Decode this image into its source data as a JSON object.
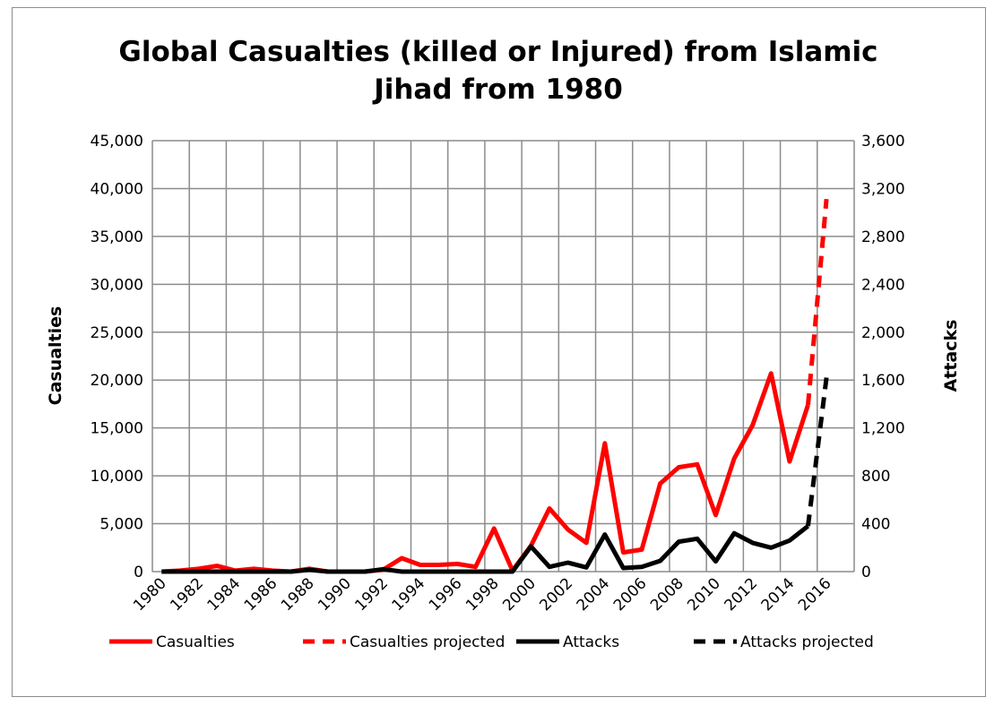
{
  "chart_data": {
    "type": "line",
    "title_lines": [
      "Global Casualties (killed or Injured) from Islamic",
      "Jihad from 1980"
    ],
    "xlabel": "",
    "ylabel": "Casualties",
    "y2label": "Attacks",
    "ylim": [
      0,
      45000
    ],
    "y2lim": [
      0,
      3600
    ],
    "yticks": [
      "0",
      "5,000",
      "10,000",
      "15,000",
      "20,000",
      "25,000",
      "30,000",
      "35,000",
      "40,000",
      "45,000"
    ],
    "y2ticks": [
      "0",
      "400",
      "800",
      "1,200",
      "1,600",
      "2,000",
      "2,400",
      "2,800",
      "3,200",
      "3,600"
    ],
    "x": [
      1980,
      1981,
      1982,
      1983,
      1984,
      1985,
      1986,
      1987,
      1988,
      1989,
      1990,
      1991,
      1992,
      1993,
      1994,
      1995,
      1996,
      1997,
      1998,
      1999,
      2000,
      2001,
      2002,
      2003,
      2004,
      2005,
      2006,
      2007,
      2008,
      2009,
      2010,
      2011,
      2012,
      2013,
      2014,
      2015,
      2016
    ],
    "xticks": [
      "1980",
      "1982",
      "1984",
      "1986",
      "1988",
      "1990",
      "1992",
      "1994",
      "1996",
      "1998",
      "2000",
      "2002",
      "2004",
      "2006",
      "2008",
      "2010",
      "2012",
      "2014",
      "2016"
    ],
    "grid": true,
    "legend_position": "bottom",
    "series": [
      {
        "name": "Casualties",
        "axis": "left",
        "color": "#ff0000",
        "dash": false,
        "x": [
          1980,
          1981,
          1982,
          1983,
          1984,
          1985,
          1986,
          1987,
          1988,
          1989,
          1990,
          1991,
          1992,
          1993,
          1994,
          1995,
          1996,
          1997,
          1998,
          1999,
          2000,
          2001,
          2002,
          2003,
          2004,
          2005,
          2006,
          2007,
          2008,
          2009,
          2010,
          2011,
          2012,
          2013,
          2014,
          2015
        ],
        "values": [
          0,
          100,
          300,
          600,
          100,
          300,
          100,
          0,
          300,
          0,
          0,
          0,
          200,
          1400,
          700,
          700,
          800,
          500,
          4500,
          100,
          2700,
          6600,
          4400,
          3000,
          13400,
          2000,
          2300,
          9200,
          10900,
          11200,
          5900,
          11800,
          15300,
          20700,
          11500,
          17400
        ]
      },
      {
        "name": "Casualties projected",
        "axis": "left",
        "color": "#ff0000",
        "dash": true,
        "x": [
          2015,
          2016
        ],
        "values": [
          17400,
          38900
        ]
      },
      {
        "name": "Attacks",
        "axis": "right",
        "color": "#000000",
        "dash": false,
        "x": [
          1980,
          1981,
          1982,
          1983,
          1984,
          1985,
          1986,
          1987,
          1988,
          1989,
          1990,
          1991,
          1992,
          1993,
          1994,
          1995,
          1996,
          1997,
          1998,
          1999,
          2000,
          2001,
          2002,
          2003,
          2004,
          2005,
          2006,
          2007,
          2008,
          2009,
          2010,
          2011,
          2012,
          2013,
          2014,
          2015
        ],
        "values": [
          0,
          0,
          0,
          0,
          0,
          0,
          0,
          0,
          15,
          0,
          0,
          0,
          20,
          0,
          0,
          0,
          0,
          0,
          0,
          0,
          210,
          40,
          75,
          35,
          310,
          30,
          40,
          90,
          250,
          275,
          85,
          320,
          240,
          200,
          260,
          380
        ]
      },
      {
        "name": "Attacks projected",
        "axis": "right",
        "color": "#000000",
        "dash": true,
        "x": [
          2015,
          2016
        ],
        "values": [
          380,
          1620
        ]
      }
    ]
  }
}
